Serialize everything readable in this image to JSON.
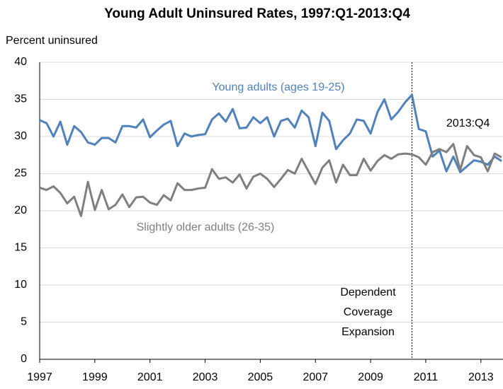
{
  "chart_data": {
    "type": "line",
    "title": "Young Adult Uninsured Rates, 1997:Q1-2013:Q4",
    "y_label": "Percent uninsured",
    "x": [
      1997,
      1997.25,
      1997.5,
      1997.75,
      1998,
      1998.25,
      1998.5,
      1998.75,
      1999,
      1999.25,
      1999.5,
      1999.75,
      2000,
      2000.25,
      2000.5,
      2000.75,
      2001,
      2001.25,
      2001.5,
      2001.75,
      2002,
      2002.25,
      2002.5,
      2002.75,
      2003,
      2003.25,
      2003.5,
      2003.75,
      2004,
      2004.25,
      2004.5,
      2004.75,
      2005,
      2005.25,
      2005.5,
      2005.75,
      2006,
      2006.25,
      2006.5,
      2006.75,
      2007,
      2007.25,
      2007.5,
      2007.75,
      2008,
      2008.25,
      2008.5,
      2008.75,
      2009,
      2009.25,
      2009.5,
      2009.75,
      2010,
      2010.25,
      2010.5,
      2010.75,
      2011,
      2011.25,
      2011.5,
      2011.75,
      2012,
      2012.25,
      2012.5,
      2012.75,
      2013,
      2013.25,
      2013.5,
      2013.75
    ],
    "series": [
      {
        "name": "Young adults (ages 19-25)",
        "color": "#4f81bd",
        "values": [
          32.2,
          31.8,
          30.0,
          32.0,
          28.9,
          31.4,
          30.6,
          29.2,
          28.9,
          29.8,
          29.8,
          29.2,
          31.4,
          31.4,
          31.2,
          32.3,
          29.9,
          30.8,
          31.6,
          32.1,
          28.7,
          30.4,
          30.0,
          30.2,
          30.3,
          32.3,
          33.1,
          32.0,
          33.7,
          31.1,
          31.2,
          32.6,
          31.8,
          32.6,
          30.0,
          32.1,
          32.4,
          31.2,
          33.5,
          32.6,
          28.7,
          33.2,
          32.1,
          28.3,
          29.5,
          30.4,
          32.3,
          32.1,
          30.4,
          33.3,
          35.0,
          32.3,
          33.3,
          34.6,
          35.6,
          31.0,
          30.7,
          27.3,
          28.1,
          25.3,
          27.3,
          25.2,
          26.0,
          26.8,
          26.6,
          26.2,
          27.3,
          26.7
        ]
      },
      {
        "name": "Slightly older adults (26-35)",
        "color": "#7f7f7f",
        "values": [
          23.1,
          22.8,
          23.3,
          22.4,
          21.0,
          21.9,
          19.3,
          23.9,
          20.1,
          22.8,
          20.2,
          20.8,
          22.2,
          20.5,
          21.8,
          21.9,
          21.1,
          20.8,
          22.1,
          21.4,
          23.7,
          22.8,
          22.8,
          23.0,
          23.1,
          25.6,
          24.3,
          24.5,
          23.8,
          24.9,
          23.0,
          24.6,
          25.0,
          24.3,
          23.2,
          24.3,
          25.5,
          25.0,
          27.0,
          25.3,
          23.6,
          25.8,
          26.8,
          23.8,
          26.2,
          24.8,
          24.8,
          27.0,
          25.4,
          26.7,
          27.5,
          27.0,
          27.6,
          27.7,
          27.6,
          27.2,
          26.2,
          27.9,
          28.3,
          27.9,
          29.0,
          25.5,
          28.7,
          27.5,
          27.2,
          25.3,
          27.7,
          27.2
        ]
      }
    ],
    "xlim": [
      1997,
      2013.75
    ],
    "xticks": [
      1997,
      1999,
      2001,
      2003,
      2005,
      2007,
      2009,
      2011,
      2013
    ],
    "ylim": [
      0,
      40
    ],
    "yticks": [
      0,
      5,
      10,
      15,
      20,
      25,
      30,
      35,
      40
    ],
    "grid": true,
    "end_label": "2013:Q4",
    "event": {
      "x": 2010.5,
      "label_lines": [
        "Dependent",
        "Coverage",
        "Expansion"
      ]
    }
  }
}
